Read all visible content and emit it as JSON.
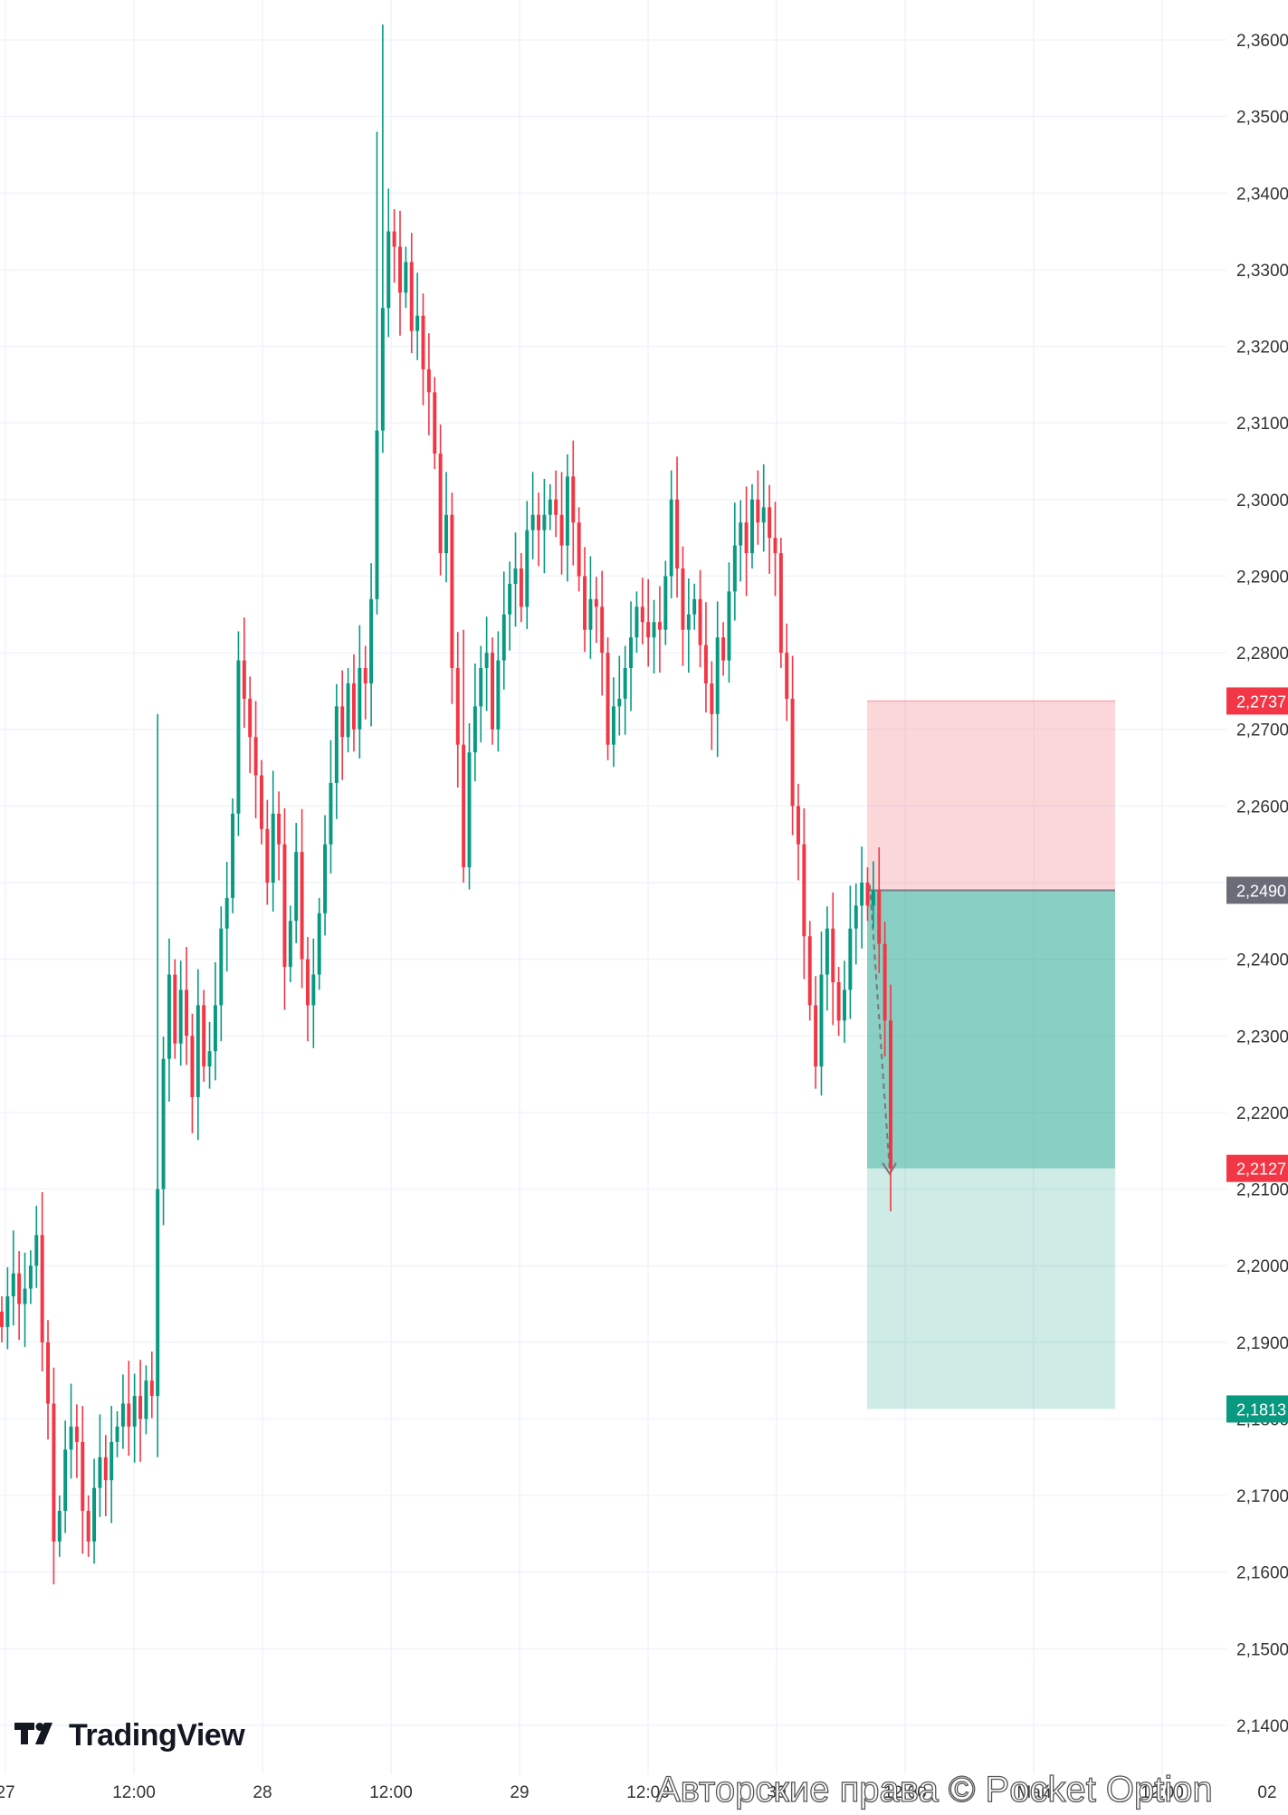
{
  "chart_data": {
    "type": "candlestick",
    "ylim": [
      2.136,
      2.3615
    ],
    "y_ticks": [
      "2,1400",
      "2,1500",
      "2,1600",
      "2,1700",
      "2,1800",
      "2,1900",
      "2,2000",
      "2,2100",
      "2,2200",
      "2,2300",
      "2,2400",
      "2,2500",
      "2,2600",
      "2,2700",
      "2,2800",
      "2,2900",
      "2,3000",
      "2,3100",
      "2,3200",
      "2,3300",
      "2,3400",
      "2,3500",
      "2,3600"
    ],
    "y_tick_values": [
      2.14,
      2.15,
      2.16,
      2.17,
      2.18,
      2.19,
      2.2,
      2.21,
      2.22,
      2.23,
      2.24,
      2.25,
      2.26,
      2.27,
      2.28,
      2.29,
      2.3,
      2.31,
      2.32,
      2.33,
      2.34,
      2.35,
      2.36
    ],
    "x_ticks": [
      "27",
      "12:00",
      "28",
      "12:00",
      "29",
      "12:00",
      "30",
      "12:00",
      "Май",
      "12:00",
      "02"
    ],
    "price_tags": [
      {
        "label": "2,2737",
        "value": 2.2737,
        "color": "#f23645"
      },
      {
        "label": "2,2490",
        "value": 2.249,
        "color": "#6a6d78"
      },
      {
        "label": "2,2127",
        "value": 2.2127,
        "color": "#f23645"
      },
      {
        "label": "2,1813",
        "value": 2.1813,
        "color": "#089981"
      }
    ],
    "position": {
      "side": "short",
      "entry": 2.249,
      "stop": 2.2737,
      "target": 2.1813,
      "current": 2.2127
    },
    "candle_closes": [
      2.192,
      2.196,
      2.199,
      2.195,
      2.197,
      2.2,
      2.204,
      2.19,
      2.182,
      2.164,
      2.168,
      2.176,
      2.179,
      2.177,
      2.168,
      2.164,
      2.171,
      2.175,
      2.172,
      2.177,
      2.179,
      2.182,
      2.179,
      2.183,
      2.18,
      2.185,
      2.183,
      2.21,
      2.227,
      2.238,
      2.229,
      2.236,
      2.23,
      2.222,
      2.234,
      2.226,
      2.228,
      2.234,
      2.244,
      2.248,
      2.259,
      2.279,
      2.274,
      2.269,
      2.264,
      2.257,
      2.25,
      2.259,
      2.255,
      2.239,
      2.245,
      2.254,
      2.24,
      2.234,
      2.238,
      2.246,
      2.255,
      2.263,
      2.273,
      2.269,
      2.276,
      2.27,
      2.278,
      2.276,
      2.287,
      2.309,
      2.325,
      2.335,
      2.333,
      2.327,
      2.331,
      2.322,
      2.324,
      2.317,
      2.314,
      2.306,
      2.293,
      2.298,
      2.278,
      2.268,
      2.252,
      2.267,
      2.273,
      2.278,
      2.28,
      2.27,
      2.279,
      2.285,
      2.289,
      2.291,
      2.286,
      2.296,
      2.298,
      2.296,
      2.298,
      2.3,
      2.298,
      2.294,
      2.303,
      2.297,
      2.29,
      2.283,
      2.287,
      2.286,
      2.28,
      2.268,
      2.273,
      2.274,
      2.278,
      2.282,
      2.286,
      2.284,
      2.282,
      2.284,
      2.283,
      2.29,
      2.3,
      2.291,
      2.283,
      2.285,
      2.287,
      2.281,
      2.276,
      2.272,
      2.282,
      2.279,
      2.288,
      2.294,
      2.297,
      2.293,
      2.3,
      2.297,
      2.299,
      2.295,
      2.293,
      2.28,
      2.274,
      2.26,
      2.255,
      2.243,
      2.234,
      2.226,
      2.238,
      2.244,
      2.237,
      2.232,
      2.236,
      2.244,
      2.247,
      2.25,
      2.247,
      2.249,
      2.242,
      2.232,
      2.2127
    ]
  },
  "watermark": {
    "brand_text": "TradingView",
    "copyright": "Авторские права © Pocket Option"
  },
  "colors": {
    "up": "#089981",
    "down": "#f23645",
    "grid": "#f0f3fa",
    "risk_zone": "rgba(242,54,69,0.2)",
    "reward_zone": "rgba(8,153,129,0.2)",
    "reward_filled": "rgba(8,153,129,0.34)"
  }
}
